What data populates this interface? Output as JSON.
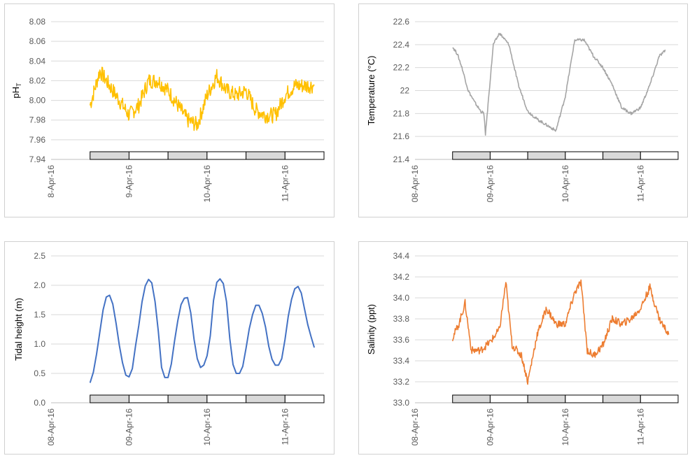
{
  "chart_data": [
    {
      "type": "line",
      "ylabel": "pH",
      "ylabel_sub": "T",
      "color": "#FFC000",
      "noise": 0.008,
      "ylim": [
        7.94,
        8.08
      ],
      "yticks": [
        "7.94",
        "7.96",
        "7.98",
        "8.00",
        "8.02",
        "8.04",
        "8.06",
        "8.08"
      ],
      "xticks": [
        "8-Apr-16",
        "9-Apr-16",
        "10-Apr-16",
        "11-Apr-16"
      ],
      "x": [
        "08-Apr-16 12:00",
        "08-Apr-16 15:00",
        "08-Apr-16 18:00",
        "08-Apr-16 21:00",
        "09-Apr-16 00:00",
        "09-Apr-16 03:00",
        "09-Apr-16 06:00",
        "09-Apr-16 09:00",
        "09-Apr-16 12:00",
        "09-Apr-16 15:00",
        "09-Apr-16 18:00",
        "09-Apr-16 21:00",
        "10-Apr-16 00:00",
        "10-Apr-16 03:00",
        "10-Apr-16 06:00",
        "10-Apr-16 09:00",
        "10-Apr-16 12:00",
        "10-Apr-16 15:00",
        "10-Apr-16 18:00",
        "10-Apr-16 21:00",
        "11-Apr-16 00:00",
        "11-Apr-16 03:00",
        "11-Apr-16 06:00",
        "11-Apr-16 09:00"
      ],
      "values": [
        7.995,
        8.03,
        8.015,
        8.0,
        7.985,
        7.995,
        8.02,
        8.02,
        8.01,
        7.995,
        7.98,
        7.975,
        8.005,
        8.025,
        8.01,
        8.005,
        8.01,
        7.99,
        7.985,
        7.985,
        8.005,
        8.015,
        8.015,
        8.015
      ]
    },
    {
      "type": "line",
      "ylabel": "Temperature  (°C)",
      "color": "#A5A5A5",
      "noise": 0.012,
      "ylim": [
        21.4,
        22.6
      ],
      "yticks": [
        "21.4",
        "21.6",
        "21.8",
        "22",
        "22.2",
        "22.4",
        "22.6"
      ],
      "xticks": [
        "08-Apr-16",
        "09-Apr-16",
        "10-Apr-16",
        "11-Apr-16"
      ],
      "x": [
        "08-Apr-16 12:00",
        "08-Apr-16 13:30",
        "08-Apr-16 15:00",
        "08-Apr-16 17:00",
        "08-Apr-16 19:00",
        "08-Apr-16 21:00",
        "08-Apr-16 22:00",
        "08-Apr-16 22:30",
        "09-Apr-16 01:00",
        "09-Apr-16 03:00",
        "09-Apr-16 06:00",
        "09-Apr-16 09:00",
        "09-Apr-16 12:00",
        "09-Apr-16 15:00",
        "09-Apr-16 18:00",
        "09-Apr-16 21:00",
        "10-Apr-16 00:00",
        "10-Apr-16 03:00",
        "10-Apr-16 06:00",
        "10-Apr-16 09:00",
        "10-Apr-16 12:00",
        "10-Apr-16 15:00",
        "10-Apr-16 18:00",
        "10-Apr-16 21:00",
        "11-Apr-16 00:00",
        "11-Apr-16 03:00",
        "11-Apr-16 06:00",
        "11-Apr-16 08:00"
      ],
      "values": [
        22.38,
        22.32,
        22.2,
        22.0,
        21.9,
        21.82,
        21.8,
        21.62,
        22.4,
        22.5,
        22.4,
        22.05,
        21.82,
        21.75,
        21.7,
        21.65,
        21.95,
        22.44,
        22.44,
        22.3,
        22.2,
        22.05,
        21.85,
        21.8,
        21.85,
        22.05,
        22.3,
        22.35
      ]
    },
    {
      "type": "line",
      "ylabel": "Tidal height (m)",
      "color": "#4472C4",
      "noise": 0,
      "ylim": [
        0.0,
        2.5
      ],
      "yticks": [
        "0.0",
        "0.5",
        "1.0",
        "1.5",
        "2.0",
        "2.5"
      ],
      "xticks": [
        "08-Apr-16",
        "09-Apr-16",
        "10-Apr-16",
        "11-Apr-16"
      ],
      "x": [
        "08-Apr-16 12:00",
        "08-Apr-16 13:00",
        "08-Apr-16 14:00",
        "08-Apr-16 15:00",
        "08-Apr-16 16:00",
        "08-Apr-16 17:00",
        "08-Apr-16 18:00",
        "08-Apr-16 19:00",
        "08-Apr-16 20:00",
        "08-Apr-16 21:00",
        "08-Apr-16 22:00",
        "08-Apr-16 23:00",
        "09-Apr-16 00:00",
        "09-Apr-16 01:00",
        "09-Apr-16 02:00",
        "09-Apr-16 03:00",
        "09-Apr-16 04:00",
        "09-Apr-16 05:00",
        "09-Apr-16 06:00",
        "09-Apr-16 07:00",
        "09-Apr-16 08:00",
        "09-Apr-16 09:00",
        "09-Apr-16 10:00",
        "09-Apr-16 11:00",
        "09-Apr-16 12:00",
        "09-Apr-16 13:00",
        "09-Apr-16 14:00",
        "09-Apr-16 15:00",
        "09-Apr-16 16:00",
        "09-Apr-16 17:00",
        "09-Apr-16 18:00",
        "09-Apr-16 19:00",
        "09-Apr-16 20:00",
        "09-Apr-16 21:00",
        "09-Apr-16 22:00",
        "09-Apr-16 23:00",
        "10-Apr-16 00:00",
        "10-Apr-16 01:00",
        "10-Apr-16 02:00",
        "10-Apr-16 03:00",
        "10-Apr-16 04:00",
        "10-Apr-16 05:00",
        "10-Apr-16 06:00",
        "10-Apr-16 07:00",
        "10-Apr-16 08:00",
        "10-Apr-16 09:00",
        "10-Apr-16 10:00",
        "10-Apr-16 11:00",
        "10-Apr-16 12:00",
        "10-Apr-16 13:00",
        "10-Apr-16 14:00",
        "10-Apr-16 15:00",
        "10-Apr-16 16:00",
        "10-Apr-16 17:00",
        "10-Apr-16 18:00",
        "10-Apr-16 19:00",
        "10-Apr-16 20:00",
        "10-Apr-16 21:00",
        "10-Apr-16 22:00",
        "10-Apr-16 23:00",
        "11-Apr-16 00:00",
        "11-Apr-16 01:00",
        "11-Apr-16 02:00",
        "11-Apr-16 03:00",
        "11-Apr-16 04:00",
        "11-Apr-16 05:00",
        "11-Apr-16 06:00",
        "11-Apr-16 07:00",
        "11-Apr-16 08:00",
        "11-Apr-16 09:00"
      ],
      "values": [
        0.34,
        0.52,
        0.83,
        1.2,
        1.58,
        1.8,
        1.83,
        1.68,
        1.35,
        0.98,
        0.68,
        0.47,
        0.44,
        0.58,
        0.97,
        1.32,
        1.72,
        1.99,
        2.1,
        2.04,
        1.72,
        1.22,
        0.6,
        0.43,
        0.43,
        0.66,
        1.05,
        1.4,
        1.67,
        1.78,
        1.79,
        1.53,
        1.08,
        0.75,
        0.6,
        0.64,
        0.8,
        1.14,
        1.74,
        2.05,
        2.11,
        2.03,
        1.72,
        1.09,
        0.65,
        0.5,
        0.5,
        0.62,
        0.93,
        1.26,
        1.5,
        1.66,
        1.66,
        1.52,
        1.29,
        0.96,
        0.74,
        0.64,
        0.64,
        0.75,
        1.08,
        1.47,
        1.76,
        1.94,
        1.98,
        1.87,
        1.6,
        1.33,
        1.13,
        0.94
      ]
    },
    {
      "type": "line",
      "ylabel": "Salinity (ppt)",
      "color": "#ED7D31",
      "noise": 0.035,
      "ylim": [
        33.0,
        34.4
      ],
      "yticks": [
        "33.0",
        "33.2",
        "33.4",
        "33.6",
        "33.8",
        "34.0",
        "34.2",
        "34.4"
      ],
      "xticks": [
        "08-Apr-16",
        "09-Apr-16",
        "10-Apr-16",
        "11-Apr-16"
      ],
      "x": [
        "08-Apr-16 12:00",
        "08-Apr-16 14:00",
        "08-Apr-16 16:00",
        "08-Apr-16 18:00",
        "08-Apr-16 21:00",
        "09-Apr-16 00:00",
        "09-Apr-16 03:00",
        "09-Apr-16 05:00",
        "09-Apr-16 07:00",
        "09-Apr-16 10:00",
        "09-Apr-16 12:00",
        "09-Apr-16 15:00",
        "09-Apr-16 18:00",
        "09-Apr-16 21:00",
        "10-Apr-16 00:00",
        "10-Apr-16 03:00",
        "10-Apr-16 05:00",
        "10-Apr-16 07:00",
        "10-Apr-16 09:00",
        "10-Apr-16 12:00",
        "10-Apr-16 15:00",
        "10-Apr-16 18:00",
        "10-Apr-16 21:00",
        "11-Apr-16 00:00",
        "11-Apr-16 03:00",
        "11-Apr-16 06:00",
        "11-Apr-16 09:00"
      ],
      "values": [
        33.62,
        33.75,
        33.95,
        33.5,
        33.5,
        33.58,
        33.7,
        34.15,
        33.55,
        33.45,
        33.2,
        33.65,
        33.9,
        33.75,
        33.75,
        34.05,
        34.15,
        33.5,
        33.45,
        33.55,
        33.8,
        33.75,
        33.8,
        33.9,
        34.1,
        33.8,
        33.65
      ]
    }
  ],
  "daynight_bars": [
    {
      "shade": "night",
      "color": "#d9d9d9"
    },
    {
      "shade": "day",
      "color": "#ffffff"
    },
    {
      "shade": "night",
      "color": "#d9d9d9"
    },
    {
      "shade": "day",
      "color": "#ffffff"
    },
    {
      "shade": "night",
      "color": "#d9d9d9"
    },
    {
      "shade": "day",
      "color": "#ffffff"
    }
  ]
}
